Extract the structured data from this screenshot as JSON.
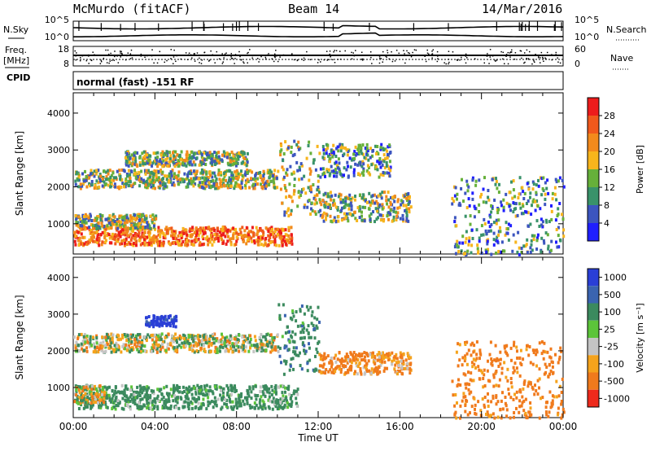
{
  "header": {
    "station": "McMurdo (fitACF)",
    "beam": "Beam 14",
    "date": "14/Mar/2016"
  },
  "top_panels": {
    "left_labels": {
      "nsky": "N.Sky",
      "freq": "Freq.",
      "freq_unit": "[MHz]",
      "cpid": "CPID"
    },
    "right_labels": {
      "nsearch": "N.Search",
      "nave": "Nave"
    },
    "noise_ticks": [
      "10^5",
      "10^0"
    ],
    "freq_ticks": [
      "18",
      "8"
    ],
    "nave_ticks": [
      "60",
      "0"
    ],
    "cpid_text": "normal (fast) -151 RF"
  },
  "chart_data": [
    {
      "type": "heatmap",
      "name": "power",
      "xlabel": "",
      "ylabel": "Slant Range [km]",
      "xlim": [
        0,
        24
      ],
      "ylim": [
        180,
        4550
      ],
      "yticks": [
        "1000",
        "2000",
        "3000",
        "4000"
      ],
      "colorbar": {
        "label": "Power [dB]",
        "ticks": [
          "4",
          "8",
          "12",
          "16",
          "20",
          "24",
          "28"
        ],
        "colors": [
          "#1f1fff",
          "#3c55bf",
          "#39926a",
          "#66b03a",
          "#f7b51c",
          "#f28a1c",
          "#f0591c",
          "#ed1c1c"
        ]
      },
      "bands": [
        {
          "t": [
            0.0,
            10.7
          ],
          "r": [
            450,
            950
          ],
          "level": "high"
        },
        {
          "t": [
            0.0,
            4.0
          ],
          "r": [
            900,
            1300
          ],
          "level": "mid"
        },
        {
          "t": [
            0.0,
            10.0
          ],
          "r": [
            2000,
            2500
          ],
          "level": "mid"
        },
        {
          "t": [
            2.5,
            8.5
          ],
          "r": [
            2600,
            3000
          ],
          "level": "mid"
        },
        {
          "t": [
            10.0,
            12.0
          ],
          "r": [
            1200,
            3300
          ],
          "level": "mid"
        },
        {
          "t": [
            12.0,
            16.5
          ],
          "r": [
            1100,
            1900
          ],
          "level": "mid"
        },
        {
          "t": [
            12.0,
            15.5
          ],
          "r": [
            2300,
            3200
          ],
          "level": "low"
        },
        {
          "t": [
            18.5,
            24.0
          ],
          "r": [
            200,
            2300
          ],
          "level": "low"
        }
      ]
    },
    {
      "type": "heatmap",
      "name": "velocity",
      "xlabel": "Time UT",
      "ylabel": "Slant Range [km]",
      "xlim": [
        0,
        24
      ],
      "ylim": [
        180,
        4550
      ],
      "xticks": [
        "00:00",
        "04:00",
        "08:00",
        "12:00",
        "16:00",
        "20:00",
        "00:00"
      ],
      "yticks": [
        "1000",
        "2000",
        "3000",
        "4000"
      ],
      "colorbar": {
        "label": "Velocity [m s⁻¹]",
        "ticks": [
          "1000",
          "500",
          "100",
          "25",
          "-25",
          "-100",
          "-500",
          "-1000"
        ],
        "colors": [
          "#2a3fd6",
          "#3a64b0",
          "#3b8a5e",
          "#5cc43a",
          "#c4c4c4",
          "#f5a31c",
          "#f07a1c",
          "#ee2a1c"
        ]
      },
      "bands": [
        {
          "t": [
            0.0,
            10.0
          ],
          "r": [
            2000,
            2500
          ],
          "v": 0
        },
        {
          "t": [
            3.5,
            5.0
          ],
          "r": [
            2700,
            3000
          ],
          "v": 800
        },
        {
          "t": [
            0.0,
            11.0
          ],
          "r": [
            450,
            1100
          ],
          "v": 150
        },
        {
          "t": [
            0.0,
            1.5
          ],
          "r": [
            600,
            1100
          ],
          "v": -50
        },
        {
          "t": [
            10.0,
            12.0
          ],
          "r": [
            1400,
            3300
          ],
          "v": 200
        },
        {
          "t": [
            12.0,
            16.5
          ],
          "r": [
            1400,
            2000
          ],
          "v": -150
        },
        {
          "t": [
            18.5,
            24.0
          ],
          "r": [
            200,
            2300
          ],
          "v": -200
        }
      ]
    }
  ]
}
